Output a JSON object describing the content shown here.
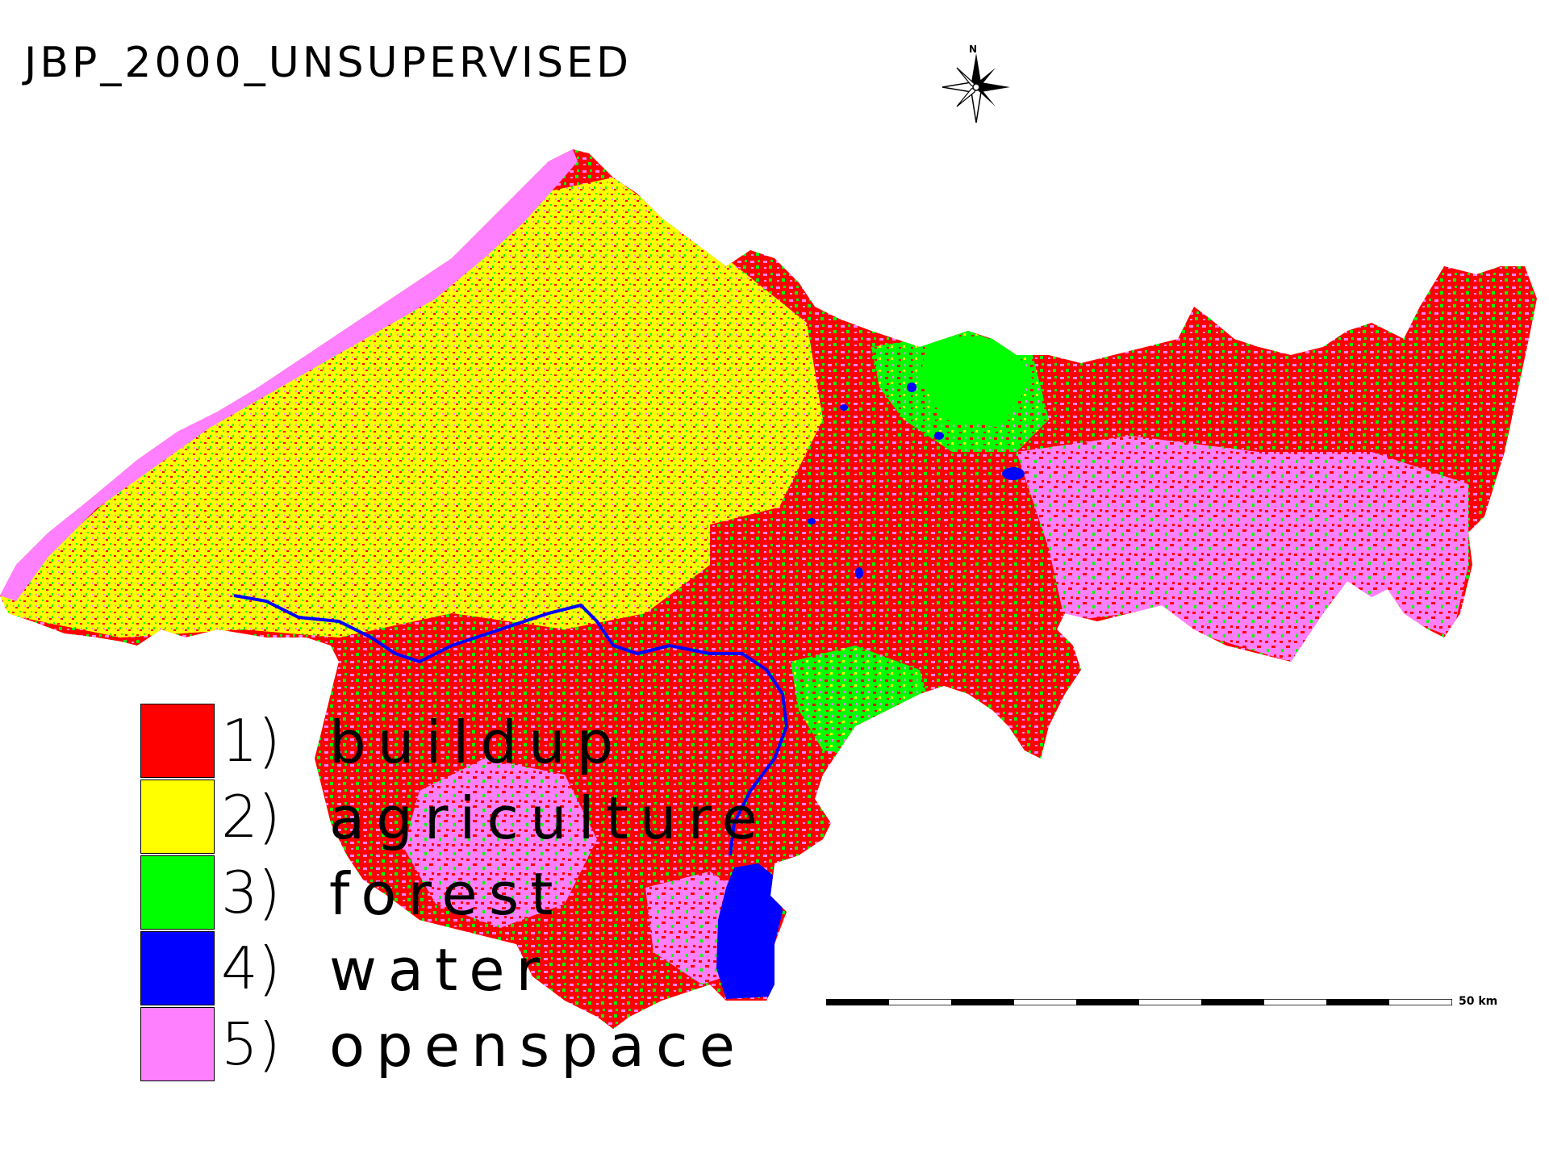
{
  "map": {
    "title": "JBP_2000_UNSUPERVISED",
    "north_label": "N",
    "scale_label": "50  km",
    "legend": [
      {
        "num": "1)",
        "label": "buildup",
        "color": "#ff0000"
      },
      {
        "num": "2)",
        "label": "agriculture",
        "color": "#ffff00"
      },
      {
        "num": "3)",
        "label": "forest",
        "color": "#00ff00"
      },
      {
        "num": "4)",
        "label": "water",
        "color": "#0000ff"
      },
      {
        "num": "5)",
        "label": "openspace",
        "color": "#ff80ff"
      }
    ]
  }
}
